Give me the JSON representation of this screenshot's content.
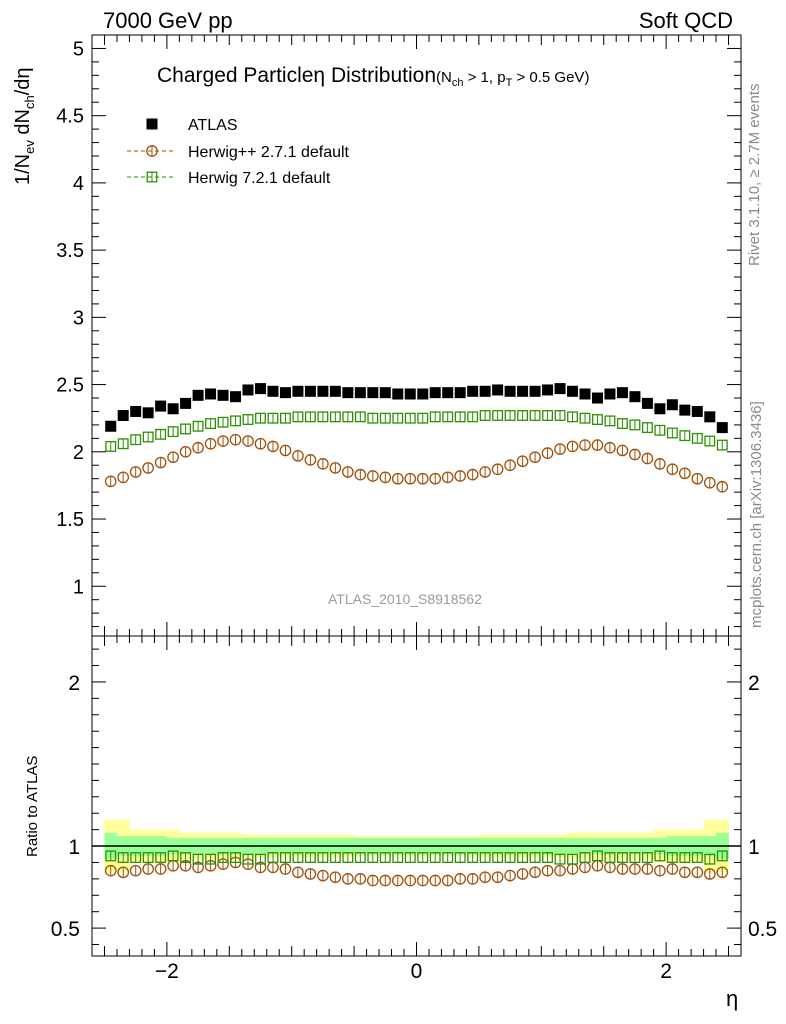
{
  "header": {
    "left": "7000 GeV pp",
    "right": "Soft QCD"
  },
  "side_text": {
    "rivet": "Rivet 3.1.10, ≥ 2.7M events",
    "mcplots": "mcplots.cern.ch [arXiv:1306.3436]"
  },
  "chart_data": {
    "type": "scatter",
    "title": "Charged Particle",
    "title_symbol": "η",
    "title_suffix": "Distribution",
    "title_cuts": "(N_ch > 1, p_T > 0.5 GeV)",
    "analysis_tag": "ATLAS_2010_S8918562",
    "xlabel": "η",
    "ylabel": "1/N_ev dN_ch/dη",
    "ratio_ylabel": "Ratio to ATLAS",
    "xlim": [
      -2.6,
      2.6
    ],
    "ylim": [
      0.63,
      5.1
    ],
    "ratio_ylim": [
      0.33,
      2.28
    ],
    "x_ticks": [
      -2,
      0,
      2
    ],
    "y_ticks": [
      1,
      1.5,
      2,
      2.5,
      3,
      3.5,
      4,
      4.5,
      5
    ],
    "y_tick_labels": [
      "1",
      "1.5",
      "2",
      "2.5",
      "3",
      "3.5",
      "4",
      "4.5",
      "5"
    ],
    "ratio_ticks": [
      0.5,
      1,
      2
    ],
    "ratio_tick_labels": [
      "0.5",
      "1",
      "2"
    ],
    "x_tick_labels": [
      "−2",
      "0",
      "2"
    ],
    "legend_position": "top-left",
    "x": [
      -2.45,
      -2.35,
      -2.25,
      -2.15,
      -2.05,
      -1.95,
      -1.85,
      -1.75,
      -1.65,
      -1.55,
      -1.45,
      -1.35,
      -1.25,
      -1.15,
      -1.05,
      -0.95,
      -0.85,
      -0.75,
      -0.65,
      -0.55,
      -0.45,
      -0.35,
      -0.25,
      -0.15,
      -0.05,
      0.05,
      0.15,
      0.25,
      0.35,
      0.45,
      0.55,
      0.65,
      0.75,
      0.85,
      0.95,
      1.05,
      1.15,
      1.25,
      1.35,
      1.45,
      1.55,
      1.65,
      1.75,
      1.85,
      1.95,
      2.05,
      2.15,
      2.25,
      2.35,
      2.45
    ],
    "series": [
      {
        "name": "ATLAS",
        "color": "#000000",
        "marker": "filled-square",
        "values": [
          2.19,
          2.27,
          2.3,
          2.29,
          2.34,
          2.32,
          2.36,
          2.42,
          2.43,
          2.42,
          2.41,
          2.46,
          2.47,
          2.45,
          2.44,
          2.45,
          2.45,
          2.45,
          2.45,
          2.44,
          2.44,
          2.44,
          2.44,
          2.43,
          2.43,
          2.43,
          2.44,
          2.44,
          2.44,
          2.45,
          2.45,
          2.46,
          2.45,
          2.45,
          2.45,
          2.46,
          2.47,
          2.45,
          2.43,
          2.4,
          2.43,
          2.44,
          2.41,
          2.36,
          2.32,
          2.35,
          2.31,
          2.3,
          2.26,
          2.18
        ]
      },
      {
        "name": "Herwig++ 2.7.1 default",
        "color": "#a0500a",
        "marker": "open-circle",
        "values": [
          1.78,
          1.81,
          1.85,
          1.88,
          1.92,
          1.96,
          2.0,
          2.03,
          2.06,
          2.08,
          2.09,
          2.08,
          2.06,
          2.04,
          2.01,
          1.97,
          1.94,
          1.91,
          1.88,
          1.85,
          1.83,
          1.82,
          1.81,
          1.8,
          1.8,
          1.8,
          1.8,
          1.81,
          1.82,
          1.83,
          1.85,
          1.87,
          1.9,
          1.93,
          1.96,
          1.99,
          2.02,
          2.04,
          2.05,
          2.05,
          2.03,
          2.01,
          1.98,
          1.95,
          1.91,
          1.87,
          1.84,
          1.8,
          1.77,
          1.74
        ]
      },
      {
        "name": "Herwig 7.2.1 default",
        "color": "#2c9000",
        "marker": "open-square",
        "values": [
          2.04,
          2.06,
          2.09,
          2.11,
          2.13,
          2.15,
          2.17,
          2.19,
          2.21,
          2.22,
          2.23,
          2.24,
          2.25,
          2.25,
          2.25,
          2.26,
          2.26,
          2.26,
          2.26,
          2.26,
          2.26,
          2.25,
          2.25,
          2.25,
          2.25,
          2.25,
          2.26,
          2.26,
          2.26,
          2.26,
          2.27,
          2.27,
          2.27,
          2.27,
          2.27,
          2.27,
          2.27,
          2.26,
          2.25,
          2.24,
          2.23,
          2.21,
          2.2,
          2.18,
          2.16,
          2.14,
          2.12,
          2.1,
          2.08,
          2.05
        ]
      }
    ],
    "ratio_series": [
      {
        "name": "Herwig++ 2.7.1 default",
        "color": "#a0500a",
        "marker": "open-circle",
        "values": [
          0.85,
          0.84,
          0.85,
          0.86,
          0.86,
          0.88,
          0.88,
          0.87,
          0.88,
          0.89,
          0.9,
          0.89,
          0.87,
          0.87,
          0.86,
          0.84,
          0.83,
          0.82,
          0.81,
          0.8,
          0.8,
          0.79,
          0.79,
          0.79,
          0.79,
          0.79,
          0.79,
          0.79,
          0.8,
          0.8,
          0.81,
          0.81,
          0.82,
          0.83,
          0.84,
          0.85,
          0.85,
          0.86,
          0.87,
          0.88,
          0.87,
          0.86,
          0.86,
          0.86,
          0.85,
          0.86,
          0.84,
          0.84,
          0.83,
          0.84
        ]
      },
      {
        "name": "Herwig 7.2.1 default",
        "color": "#2c9000",
        "marker": "open-square",
        "values": [
          0.94,
          0.93,
          0.93,
          0.93,
          0.93,
          0.94,
          0.93,
          0.92,
          0.92,
          0.93,
          0.93,
          0.92,
          0.92,
          0.93,
          0.93,
          0.93,
          0.93,
          0.93,
          0.93,
          0.93,
          0.93,
          0.93,
          0.93,
          0.93,
          0.93,
          0.93,
          0.93,
          0.93,
          0.93,
          0.93,
          0.93,
          0.93,
          0.93,
          0.93,
          0.93,
          0.93,
          0.92,
          0.92,
          0.93,
          0.94,
          0.93,
          0.93,
          0.93,
          0.93,
          0.94,
          0.93,
          0.93,
          0.93,
          0.92,
          0.94
        ]
      }
    ],
    "ratio_bands": {
      "green_halfwidth": [
        0.08,
        0.06,
        0.06,
        0.06,
        0.06,
        0.05,
        0.05,
        0.05,
        0.05,
        0.05,
        0.05,
        0.05,
        0.05,
        0.05,
        0.05,
        0.05,
        0.05,
        0.05,
        0.05,
        0.05,
        0.05,
        0.05,
        0.05,
        0.05,
        0.05,
        0.05,
        0.05,
        0.05,
        0.05,
        0.05,
        0.05,
        0.05,
        0.05,
        0.05,
        0.05,
        0.05,
        0.05,
        0.05,
        0.05,
        0.05,
        0.05,
        0.05,
        0.05,
        0.05,
        0.05,
        0.06,
        0.06,
        0.06,
        0.06,
        0.08
      ],
      "yellow_halfwidth": [
        0.16,
        0.16,
        0.1,
        0.1,
        0.1,
        0.1,
        0.08,
        0.08,
        0.08,
        0.08,
        0.08,
        0.07,
        0.07,
        0.07,
        0.07,
        0.07,
        0.07,
        0.07,
        0.07,
        0.07,
        0.06,
        0.06,
        0.06,
        0.06,
        0.06,
        0.06,
        0.06,
        0.06,
        0.06,
        0.06,
        0.07,
        0.07,
        0.07,
        0.07,
        0.07,
        0.07,
        0.07,
        0.08,
        0.08,
        0.08,
        0.08,
        0.08,
        0.08,
        0.08,
        0.1,
        0.1,
        0.1,
        0.1,
        0.16,
        0.16
      ]
    }
  }
}
